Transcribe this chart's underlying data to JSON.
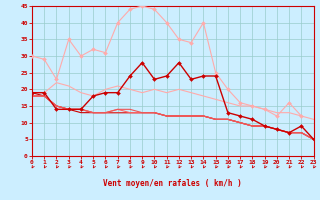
{
  "xlabel": "Vent moyen/en rafales ( km/h )",
  "xlim": [
    0,
    23
  ],
  "ylim": [
    0,
    45
  ],
  "yticks": [
    0,
    5,
    10,
    15,
    20,
    25,
    30,
    35,
    40,
    45
  ],
  "xticks": [
    0,
    1,
    2,
    3,
    4,
    5,
    6,
    7,
    8,
    9,
    10,
    11,
    12,
    13,
    14,
    15,
    16,
    17,
    18,
    19,
    20,
    21,
    22,
    23
  ],
  "bg_color": "#cceeff",
  "grid_color": "#99cccc",
  "series": [
    {
      "y": [
        30,
        29,
        23,
        35,
        30,
        32,
        31,
        40,
        44,
        45,
        44,
        40,
        35,
        34,
        40,
        25,
        20,
        16,
        15,
        14,
        12,
        16,
        12,
        null
      ],
      "color": "#ffaaaa",
      "lw": 0.8,
      "marker": "D",
      "ms": 2.0
    },
    {
      "y": [
        19,
        19,
        22,
        21,
        19,
        18,
        20,
        21,
        20,
        19,
        20,
        19,
        20,
        19,
        18,
        17,
        16,
        15,
        15,
        14,
        13,
        13,
        12,
        11
      ],
      "color": "#ffaaaa",
      "lw": 0.8,
      "marker": null,
      "ms": 0
    },
    {
      "y": [
        19,
        19,
        14,
        14,
        14,
        18,
        19,
        19,
        24,
        28,
        23,
        24,
        28,
        23,
        24,
        24,
        13,
        12,
        11,
        9,
        8,
        7,
        9,
        5
      ],
      "color": "#cc0000",
      "lw": 1.0,
      "marker": "D",
      "ms": 2.0
    },
    {
      "y": [
        19,
        18,
        15,
        14,
        13,
        13,
        13,
        13,
        13,
        13,
        13,
        12,
        12,
        12,
        12,
        11,
        11,
        10,
        9,
        9,
        8,
        7,
        7,
        5
      ],
      "color": "#cc0000",
      "lw": 0.8,
      "marker": null,
      "ms": 0
    },
    {
      "y": [
        18,
        18,
        15,
        14,
        14,
        13,
        13,
        13,
        13,
        13,
        13,
        12,
        12,
        12,
        12,
        11,
        11,
        10,
        9,
        9,
        8,
        7,
        7,
        5
      ],
      "color": "#dd4444",
      "lw": 0.8,
      "marker": null,
      "ms": 0
    },
    {
      "y": [
        18,
        18,
        15,
        14,
        14,
        13,
        13,
        14,
        13,
        13,
        13,
        12,
        12,
        12,
        12,
        11,
        11,
        10,
        9,
        9,
        8,
        7,
        7,
        5
      ],
      "color": "#ff6666",
      "lw": 0.8,
      "marker": null,
      "ms": 0
    },
    {
      "y": [
        18,
        18,
        15,
        14,
        14,
        13,
        13,
        14,
        14,
        13,
        13,
        12,
        12,
        12,
        12,
        11,
        11,
        10,
        9,
        9,
        8,
        7,
        7,
        5
      ],
      "color": "#ee5555",
      "lw": 0.8,
      "marker": null,
      "ms": 0
    }
  ],
  "arrow_color": "#cc0000",
  "tick_color": "#cc0000",
  "label_color": "#cc0000",
  "spine_color": "#cc0000"
}
